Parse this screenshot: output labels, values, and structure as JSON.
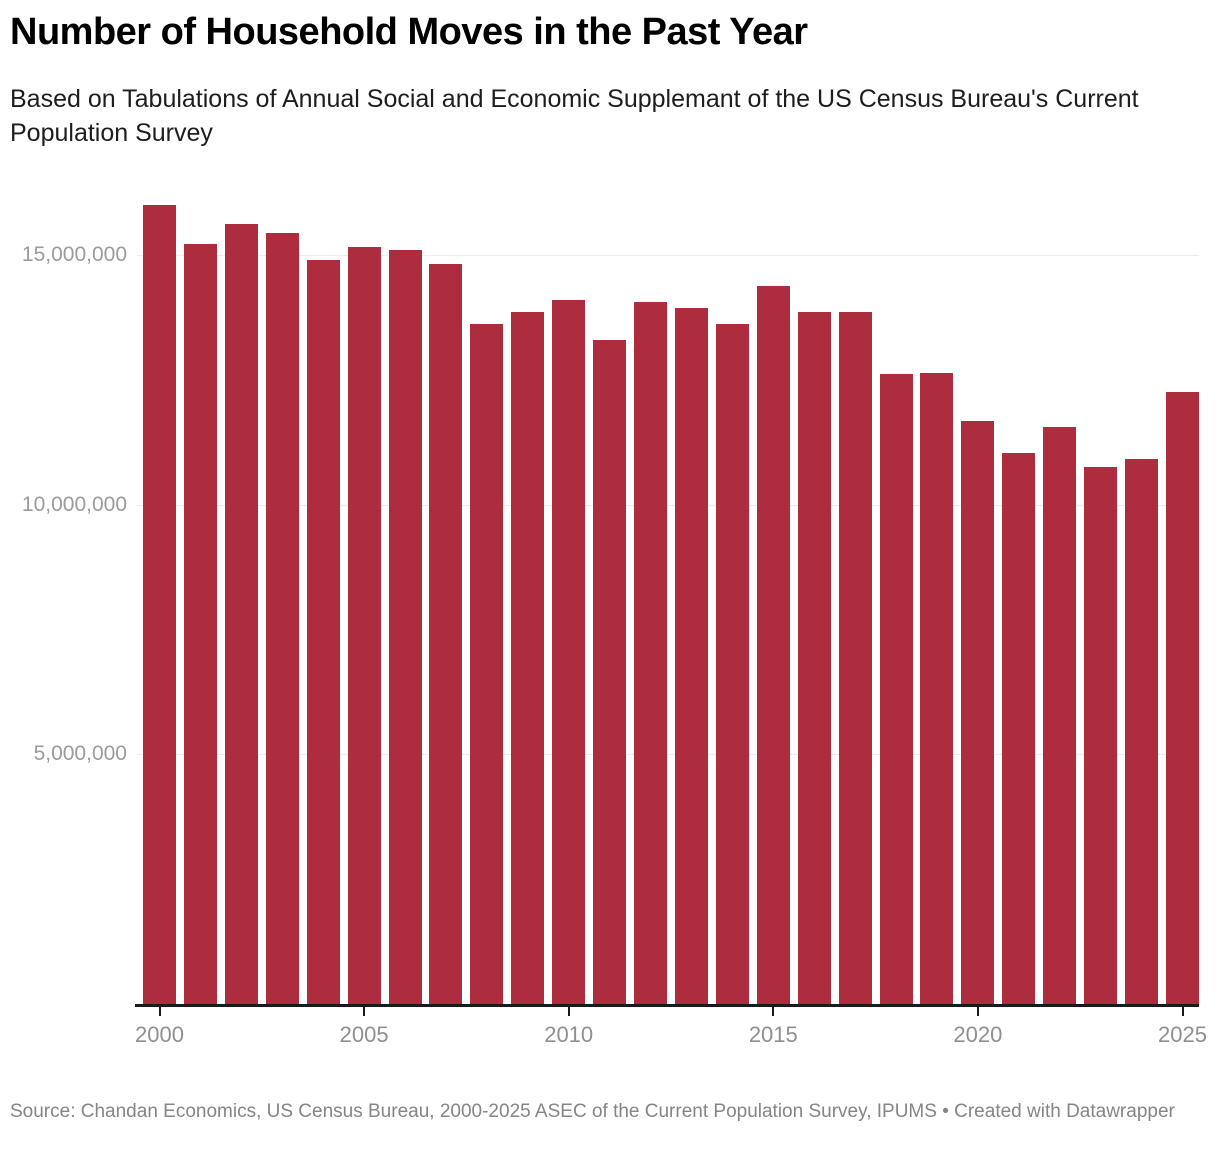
{
  "header": {
    "title": "Number of Household Moves in the Past Year",
    "subtitle": "Based on Tabulations of Annual Social and Economic Supplemant of the US Census Bureau's Current Population Survey"
  },
  "footer": {
    "source": "Source: Chandan Economics, US Census Bureau, 2000-2025 ASEC of the Current Population Survey, IPUMS • Created with Datawrapper"
  },
  "colors": {
    "bar": "#ad2c3e",
    "grid": "#ececec",
    "axis": "#1a1a1a",
    "y_tick_label": "#9b9b9b",
    "x_tick_label": "#8f8f8f",
    "footer_text": "#858585",
    "title_text": "#000000",
    "subtitle_text": "#1d1d1d"
  },
  "chart_data": {
    "type": "bar",
    "title": "Number of Household Moves in the Past Year",
    "subtitle": "Based on Tabulations of Annual Social and Economic Supplemant of the US Census Bureau's Current Population Survey",
    "xlabel": "",
    "ylabel": "",
    "grid": "horizontal",
    "legend": "none",
    "ylim": [
      0,
      16300000
    ],
    "categories": [
      "2000",
      "2001",
      "2002",
      "2003",
      "2004",
      "2005",
      "2006",
      "2007",
      "2008",
      "2009",
      "2010",
      "2011",
      "2012",
      "2013",
      "2014",
      "2015",
      "2016",
      "2017",
      "2018",
      "2019",
      "2020",
      "2021",
      "2022",
      "2023",
      "2024",
      "2025"
    ],
    "values": [
      16000000,
      15220000,
      15610000,
      15430000,
      14900000,
      15160000,
      15100000,
      14820000,
      13610000,
      13860000,
      14090000,
      13290000,
      14050000,
      13940000,
      13610000,
      14370000,
      13850000,
      13860000,
      12610000,
      12630000,
      11680000,
      11030000,
      11560000,
      10750000,
      10920000,
      12250000
    ],
    "yticks": [
      {
        "value": 5000000,
        "label": "5,000,000"
      },
      {
        "value": 10000000,
        "label": "10,000,000"
      },
      {
        "value": 15000000,
        "label": "15,000,000"
      }
    ],
    "xticks": [
      {
        "year": "2000",
        "index": 0
      },
      {
        "year": "2005",
        "index": 5
      },
      {
        "year": "2010",
        "index": 10
      },
      {
        "year": "2015",
        "index": 15
      },
      {
        "year": "2020",
        "index": 20
      },
      {
        "year": "2025",
        "index": 25
      }
    ]
  }
}
